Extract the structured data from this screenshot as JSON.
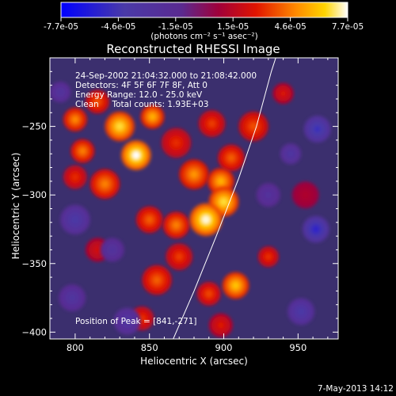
{
  "chart_data": {
    "type": "heatmap",
    "title": "Reconstructed RHESSI Image",
    "xlabel": "Heliocentric X (arcsec)",
    "ylabel": "Heliocentric Y (arcsec)",
    "xlim": [
      783,
      977
    ],
    "ylim": [
      -405,
      -200
    ],
    "x_ticks": [
      800,
      850,
      900,
      950
    ],
    "y_ticks": [
      -250,
      -300,
      -350,
      -400
    ],
    "colorbar": {
      "ticks": [
        "-7.7e-05",
        "-4.6e-05",
        "-1.5e-05",
        "1.5e-05",
        "4.6e-05",
        "7.7e-05"
      ],
      "unit_label": "(photons cm⁻² s⁻¹ asec⁻²)",
      "range": [
        -7.7e-05,
        7.7e-05
      ]
    },
    "info": {
      "line1": "24-Sep-2002 21:04:32.000 to 21:08:42.000",
      "line2": "Detectors: 4F 5F 6F 7F 8F, Att 0",
      "line3": "Energy Range: 12.0 - 25.0 keV",
      "line4": "Clean     Total counts: 1.93E+03"
    },
    "peak_label": "Position of Peak = [841,-271]",
    "footer_date": "7-May-2013 14:12",
    "blobs": [
      {
        "x": 841,
        "y": -271,
        "r": 10,
        "v": 7.7e-05
      },
      {
        "x": 830,
        "y": -250,
        "r": 10,
        "v": 6.6e-05
      },
      {
        "x": 852,
        "y": -243,
        "r": 8,
        "v": 5.6e-05
      },
      {
        "x": 815,
        "y": -232,
        "r": 8,
        "v": 3.8e-05
      },
      {
        "x": 800,
        "y": -245,
        "r": 8,
        "v": 4.8e-05
      },
      {
        "x": 805,
        "y": -268,
        "r": 8,
        "v": 4.6e-05
      },
      {
        "x": 820,
        "y": -292,
        "r": 10,
        "v": 4.6e-05
      },
      {
        "x": 800,
        "y": -287,
        "r": 8,
        "v": 3.1e-05
      },
      {
        "x": 868,
        "y": -262,
        "r": 10,
        "v": 3.1e-05
      },
      {
        "x": 880,
        "y": -285,
        "r": 10,
        "v": 5e-05
      },
      {
        "x": 898,
        "y": -290,
        "r": 9,
        "v": 5.6e-05
      },
      {
        "x": 888,
        "y": -318,
        "r": 11,
        "v": 7.5e-05
      },
      {
        "x": 900,
        "y": -305,
        "r": 10,
        "v": 6.6e-05
      },
      {
        "x": 868,
        "y": -322,
        "r": 9,
        "v": 4.6e-05
      },
      {
        "x": 850,
        "y": -318,
        "r": 9,
        "v": 4e-05
      },
      {
        "x": 905,
        "y": -273,
        "r": 9,
        "v": 4e-05
      },
      {
        "x": 920,
        "y": -250,
        "r": 10,
        "v": 3.7e-05
      },
      {
        "x": 892,
        "y": -248,
        "r": 9,
        "v": 3.4e-05
      },
      {
        "x": 870,
        "y": -345,
        "r": 9,
        "v": 3.4e-05
      },
      {
        "x": 855,
        "y": -362,
        "r": 10,
        "v": 4e-05
      },
      {
        "x": 908,
        "y": -366,
        "r": 9,
        "v": 6e-05
      },
      {
        "x": 890,
        "y": -372,
        "r": 8,
        "v": 3.6e-05
      },
      {
        "x": 930,
        "y": -345,
        "r": 7,
        "v": 3.2e-05
      },
      {
        "x": 845,
        "y": -390,
        "r": 8,
        "v": 3.2e-05
      },
      {
        "x": 815,
        "y": -340,
        "r": 8,
        "v": 2.2e-05
      },
      {
        "x": 898,
        "y": -395,
        "r": 8,
        "v": 2.6e-05
      },
      {
        "x": 940,
        "y": -226,
        "r": 7,
        "v": 2.5e-05
      },
      {
        "x": 955,
        "y": -300,
        "r": 9,
        "v": 1.2e-05
      },
      {
        "x": 800,
        "y": -318,
        "r": 10,
        "v": -3.8e-05
      },
      {
        "x": 963,
        "y": -252,
        "r": 9,
        "v": -5e-05
      },
      {
        "x": 962,
        "y": -325,
        "r": 9,
        "v": -5.6e-05
      },
      {
        "x": 945,
        "y": -270,
        "r": 7,
        "v": -3.4e-05
      },
      {
        "x": 835,
        "y": -392,
        "r": 9,
        "v": -3.2e-05
      },
      {
        "x": 952,
        "y": -385,
        "r": 9,
        "v": -4e-05
      },
      {
        "x": 798,
        "y": -375,
        "r": 9,
        "v": -3e-05
      },
      {
        "x": 825,
        "y": -340,
        "r": 8,
        "v": -2.8e-05
      },
      {
        "x": 790,
        "y": -225,
        "r": 7,
        "v": -2.8e-05
      },
      {
        "x": 930,
        "y": -300,
        "r": 8,
        "v": -2.6e-05
      }
    ],
    "limb_curve": [
      [
        866,
        -405
      ],
      [
        880,
        -370
      ],
      [
        895,
        -330
      ],
      [
        910,
        -288
      ],
      [
        922,
        -250
      ],
      [
        932,
        -210
      ],
      [
        935,
        -200
      ]
    ]
  }
}
